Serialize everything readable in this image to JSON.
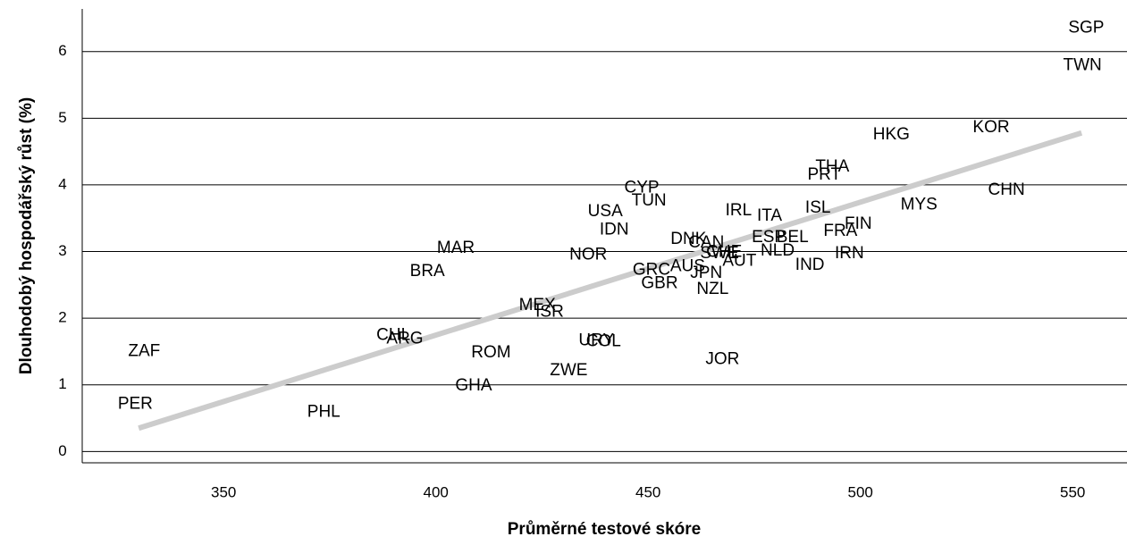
{
  "chart_data": {
    "type": "scatter",
    "xlabel": "Průměrné testové skóre",
    "ylabel": "Dlouhodobý hospodářský růst (%)",
    "xlim": [
      316.7,
      562.8
    ],
    "ylim": [
      -0.17,
      6.64
    ],
    "xticks": [
      350,
      400,
      450,
      500,
      550
    ],
    "yticks": [
      0,
      1,
      2,
      3,
      4,
      5,
      6
    ],
    "grid": "y",
    "series": [
      {
        "color": "#000000",
        "labels": [
          "SGP",
          "TWN",
          "HKG",
          "KOR",
          "THA",
          "PRT",
          "CHN",
          "MYS",
          "ISL",
          "FIN",
          "FRA",
          "IRN",
          "IND",
          "IRL",
          "ITA",
          "ESP",
          "BEL",
          "NLD",
          "CYP",
          "TUN",
          "USA",
          "IDN",
          "NOR",
          "MAR",
          "BRA",
          "DNK",
          "CAN",
          "SWE",
          "CHE",
          "AUT",
          "GRC",
          "AUS",
          "JPN",
          "GBR",
          "NZL",
          "MEX",
          "ISR",
          "CHL",
          "ARG",
          "URY",
          "COL",
          "ZAF",
          "ROM",
          "JOR",
          "ZWE",
          "GHA",
          "PER",
          "PHL"
        ],
        "x": [
          553.2,
          552.3,
          507.3,
          530.8,
          493.4,
          491.5,
          534.4,
          513.8,
          490.0,
          499.5,
          495.3,
          497.4,
          488.1,
          471.3,
          478.6,
          478.4,
          484.0,
          480.5,
          448.5,
          450.2,
          439.9,
          442.0,
          435.9,
          404.7,
          398.0,
          459.5,
          463.7,
          466.8,
          467.9,
          471.5,
          450.8,
          459.3,
          463.7,
          452.7,
          465.2,
          423.9,
          426.8,
          390.0,
          392.7,
          437.8,
          439.5,
          331.3,
          413.0,
          467.5,
          431.3,
          408.9,
          329.2,
          373.6
        ],
        "y": [
          6.35,
          5.79,
          4.75,
          4.86,
          4.27,
          4.15,
          3.92,
          3.7,
          3.65,
          3.41,
          3.3,
          2.97,
          2.79,
          3.61,
          3.53,
          3.21,
          3.21,
          3.01,
          3.95,
          3.76,
          3.6,
          3.32,
          2.95,
          3.05,
          2.7,
          3.18,
          3.13,
          2.97,
          2.99,
          2.85,
          2.72,
          2.77,
          2.67,
          2.52,
          2.43,
          2.19,
          2.09,
          1.74,
          1.69,
          1.66,
          1.65,
          1.5,
          1.48,
          1.38,
          1.21,
          0.98,
          0.71,
          0.59
        ]
      }
    ],
    "trendline": {
      "color": "#cccccc",
      "x": [
        330.0,
        552.1
      ],
      "y": [
        0.35,
        4.78
      ]
    }
  }
}
